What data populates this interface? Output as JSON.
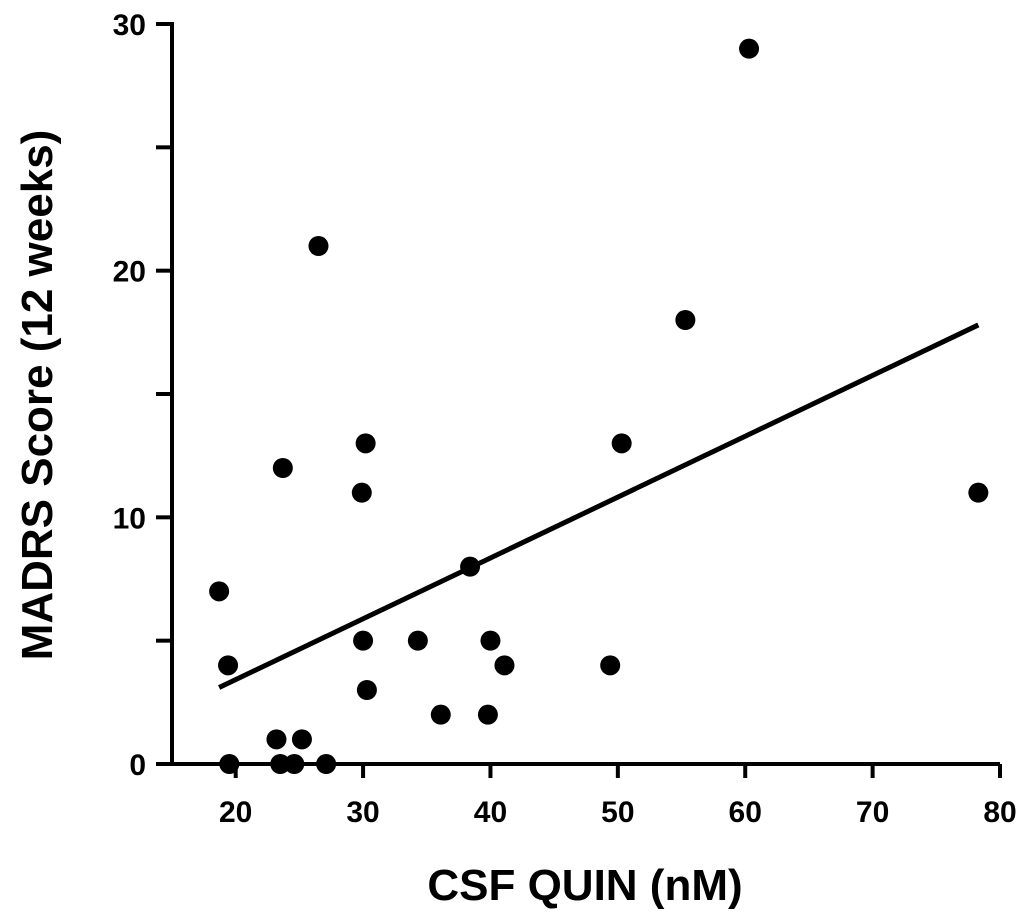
{
  "chart_data": {
    "type": "scatter",
    "xlabel": "CSF QUIN (nM)",
    "ylabel": "MADRS Score (12 weeks)",
    "xlim": [
      15,
      80
    ],
    "ylim": [
      0,
      30
    ],
    "x_ticks": [
      "20",
      "30",
      "40",
      "50",
      "60",
      "70",
      "80"
    ],
    "y_ticks": [
      "0",
      "10",
      "20",
      "30"
    ],
    "x_tick_values": [
      20,
      30,
      40,
      50,
      60,
      70,
      80
    ],
    "y_tick_values": [
      0,
      10,
      20,
      30
    ],
    "y_minor_ticks": [
      5,
      15,
      25
    ],
    "points": [
      {
        "x": 18.7,
        "y": 7
      },
      {
        "x": 19.4,
        "y": 4
      },
      {
        "x": 19.5,
        "y": 0
      },
      {
        "x": 23.2,
        "y": 1
      },
      {
        "x": 23.5,
        "y": 0
      },
      {
        "x": 23.7,
        "y": 12
      },
      {
        "x": 24.6,
        "y": 0
      },
      {
        "x": 25.2,
        "y": 1
      },
      {
        "x": 26.5,
        "y": 21
      },
      {
        "x": 27.1,
        "y": 0
      },
      {
        "x": 29.9,
        "y": 11
      },
      {
        "x": 30.0,
        "y": 5
      },
      {
        "x": 30.2,
        "y": 13
      },
      {
        "x": 30.3,
        "y": 3
      },
      {
        "x": 34.3,
        "y": 5
      },
      {
        "x": 36.1,
        "y": 2
      },
      {
        "x": 38.4,
        "y": 8
      },
      {
        "x": 39.8,
        "y": 2
      },
      {
        "x": 40.0,
        "y": 5
      },
      {
        "x": 41.1,
        "y": 4
      },
      {
        "x": 49.4,
        "y": 4
      },
      {
        "x": 50.3,
        "y": 13
      },
      {
        "x": 55.3,
        "y": 18
      },
      {
        "x": 60.3,
        "y": 29
      },
      {
        "x": 78.3,
        "y": 11
      }
    ],
    "trendline": {
      "x": [
        18.7,
        78.3
      ],
      "y": [
        3.1,
        17.8
      ]
    },
    "grid": false,
    "marker_color": "#000000"
  }
}
